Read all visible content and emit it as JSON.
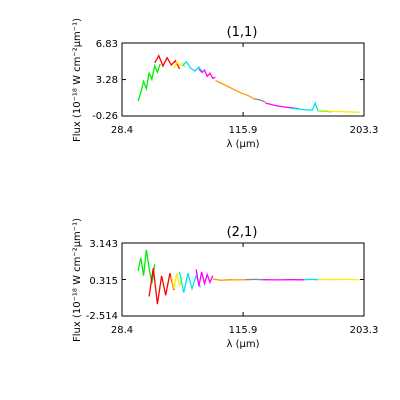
{
  "chart_data": [
    {
      "type": "line",
      "title": "(1,1)",
      "xlabel": "λ (μm)",
      "ylabel": "Flux (10⁻¹⁸ W cm⁻²μm⁻¹)",
      "xlim": [
        28.4,
        203.3
      ],
      "ylim": [
        -0.26,
        6.83
      ],
      "x_ticks": [
        "28.4",
        "115.9",
        "203.3"
      ],
      "y_ticks": [
        "-0.26",
        "3.28",
        "6.83"
      ],
      "series": [
        {
          "color": "#00ee00",
          "x": [
            40,
            42,
            44,
            46,
            48,
            50,
            52,
            54,
            56
          ],
          "y": [
            1.2,
            2.0,
            3.1,
            2.4,
            3.9,
            3.3,
            4.6,
            4.0,
            4.8
          ]
        },
        {
          "color": "#ff0000",
          "x": [
            52,
            55,
            58,
            61,
            64,
            67,
            70
          ],
          "y": [
            4.9,
            5.6,
            4.6,
            5.4,
            4.7,
            5.1,
            4.3
          ]
        },
        {
          "color": "#ffee00",
          "x": [
            66,
            68,
            70,
            72,
            74
          ],
          "y": [
            4.4,
            5.0,
            4.6,
            4.9,
            4.5
          ]
        },
        {
          "color": "#00e5ee",
          "x": [
            72,
            75,
            78,
            81,
            84,
            87
          ],
          "y": [
            4.6,
            5.0,
            4.4,
            4.1,
            4.5,
            3.9
          ]
        },
        {
          "color": "#ff00ff",
          "x": [
            84,
            86,
            88,
            90,
            92,
            94,
            96
          ],
          "y": [
            4.3,
            4.0,
            4.2,
            3.6,
            3.9,
            3.4,
            3.5
          ]
        },
        {
          "color": "#ff9900",
          "x": [
            96,
            102,
            108,
            114,
            120,
            124
          ],
          "y": [
            3.2,
            2.8,
            2.4,
            2.0,
            1.7,
            1.4
          ]
        },
        {
          "color": "#888888",
          "x": [
            124,
            128,
            132
          ],
          "y": [
            1.4,
            1.3,
            1.1
          ]
        },
        {
          "color": "#ff00ff",
          "x": [
            132,
            138,
            144,
            150,
            156
          ],
          "y": [
            1.0,
            0.8,
            0.65,
            0.55,
            0.45
          ]
        },
        {
          "color": "#00e5ee",
          "x": [
            150,
            160,
            166,
            168,
            170,
            180
          ],
          "y": [
            0.5,
            0.35,
            0.3,
            1.0,
            0.25,
            0.15
          ]
        },
        {
          "color": "#ffee00",
          "x": [
            170,
            180,
            190,
            200
          ],
          "y": [
            0.3,
            0.2,
            0.15,
            0.1
          ]
        }
      ]
    },
    {
      "type": "line",
      "title": "(2,1)",
      "xlabel": "λ (μm)",
      "ylabel": "Flux (10⁻¹⁸ W cm⁻²μm⁻¹)",
      "xlim": [
        28.4,
        203.3
      ],
      "ylim": [
        -2.514,
        3.143
      ],
      "x_ticks": [
        "28.4",
        "115.9",
        "203.3"
      ],
      "y_ticks": [
        "-2.514",
        "0.315",
        "3.143"
      ],
      "series": [
        {
          "color": "#00ee00",
          "x": [
            40,
            42,
            44,
            46,
            48,
            50,
            52
          ],
          "y": [
            1.0,
            2.0,
            0.6,
            2.6,
            1.2,
            0.0,
            1.5
          ]
        },
        {
          "color": "#ff0000",
          "x": [
            48,
            51,
            54,
            57,
            60,
            63,
            66
          ],
          "y": [
            -1.0,
            1.2,
            -1.6,
            0.6,
            -0.9,
            0.8,
            -0.5
          ]
        },
        {
          "color": "#ffee00",
          "x": [
            64,
            66,
            68,
            70,
            72
          ],
          "y": [
            0.6,
            -0.4,
            0.8,
            -0.2,
            0.5
          ]
        },
        {
          "color": "#00e5ee",
          "x": [
            70,
            73,
            76,
            79,
            82,
            85
          ],
          "y": [
            0.9,
            -0.7,
            0.8,
            -0.4,
            0.6,
            -0.3
          ]
        },
        {
          "color": "#ff00ff",
          "x": [
            82,
            84,
            86,
            88,
            90,
            92,
            94
          ],
          "y": [
            1.1,
            -0.2,
            0.9,
            0.0,
            0.7,
            0.1,
            0.6
          ]
        },
        {
          "color": "#ff9900",
          "x": [
            94,
            100,
            106,
            112,
            118
          ],
          "y": [
            0.35,
            0.25,
            0.3,
            0.28,
            0.3
          ]
        },
        {
          "color": "#888888",
          "x": [
            118,
            124,
            130
          ],
          "y": [
            0.3,
            0.32,
            0.3
          ]
        },
        {
          "color": "#ff00ff",
          "x": [
            130,
            140,
            150,
            160
          ],
          "y": [
            0.3,
            0.28,
            0.3,
            0.29
          ]
        },
        {
          "color": "#00e5ee",
          "x": [
            160,
            165,
            170
          ],
          "y": [
            0.3,
            0.32,
            0.3
          ]
        },
        {
          "color": "#ffee00",
          "x": [
            170,
            180,
            190,
            200
          ],
          "y": [
            0.31,
            0.3,
            0.32,
            0.3
          ]
        }
      ]
    }
  ]
}
